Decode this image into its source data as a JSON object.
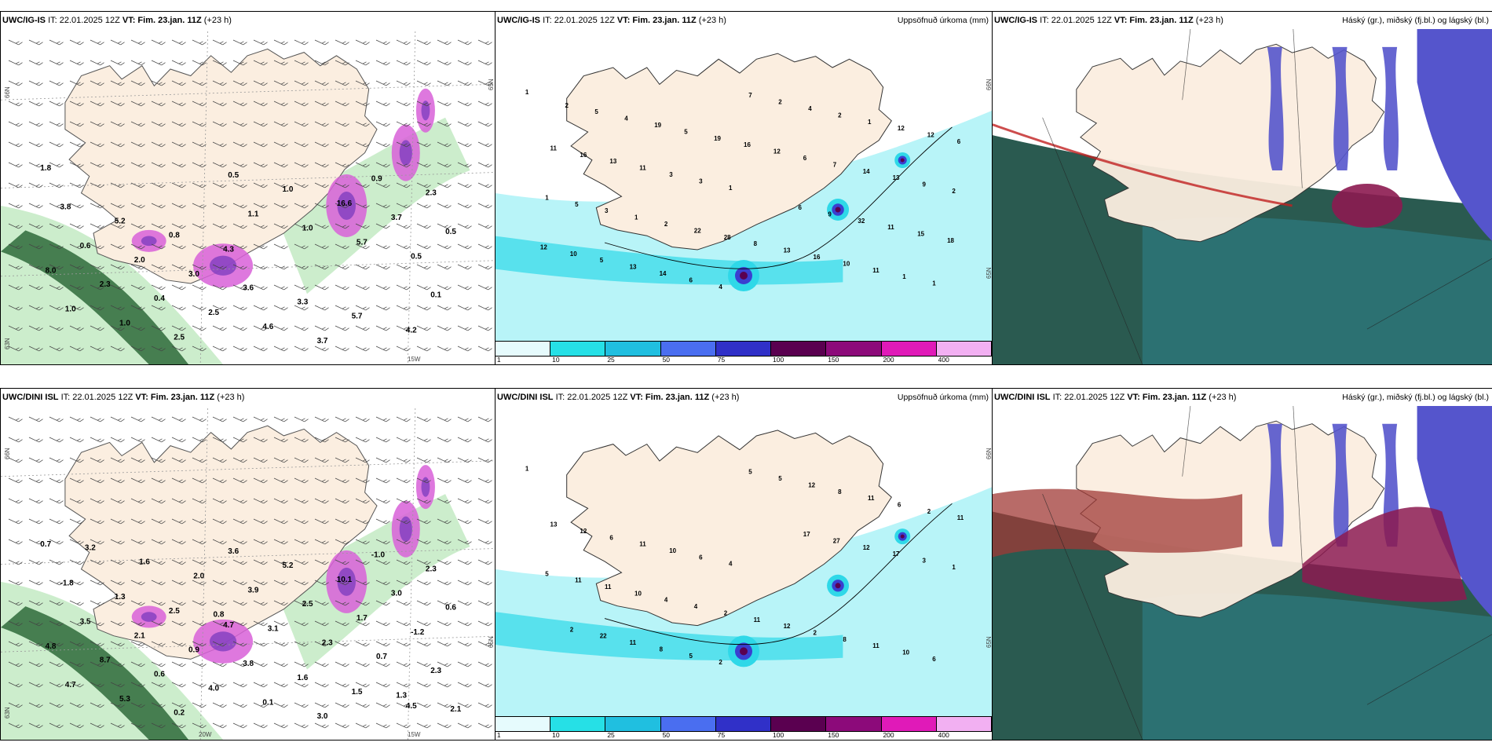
{
  "panels": [
    {
      "id": "top-left",
      "model": "UWC/IG-IS",
      "it_text": "IT: 22.01.2025 12Z",
      "vt_text": "VT: Fim. 23.jan. 11Z",
      "lead_text": "(+23 h)",
      "right_title": "",
      "lat_labels": [
        "66N",
        "65N",
        "63N"
      ],
      "lon_labels": [
        "15W"
      ],
      "point_labels": [
        "1.8",
        "4.3",
        "4.2",
        "0.8",
        "5.7",
        "5.2",
        "3.3",
        "3.8",
        "3.6",
        "2.3",
        "3.0",
        "0.9",
        "2.0",
        "3.7",
        "0.6",
        "4.6",
        "0.5",
        "2.5",
        "3.7",
        "0.4",
        "16.6",
        "2.3",
        "1.0",
        "8.0",
        "0.5",
        "0.5",
        "2.5",
        "5.7",
        "1.0",
        "1.0",
        "1.0",
        "1.1",
        "0.1"
      ]
    },
    {
      "id": "top-middle",
      "model": "UWC/IG-IS",
      "it_text": "IT: 22.01.2025 12Z",
      "vt_text": "VT: Fim. 23.jan. 11Z",
      "lead_text": "(+23 h)",
      "right_title": "Uppsöfnuð úrkoma (mm)",
      "lat_labels": [
        "66N",
        "65N"
      ],
      "lon_labels": [],
      "point_labels": [
        "1",
        "1",
        "1",
        "3",
        "1",
        "3",
        "11",
        "11",
        "10",
        "13",
        "16",
        "16",
        "13",
        "11",
        "8",
        "6",
        "28",
        "12",
        "22",
        "12",
        "2",
        "1",
        "1",
        "2",
        "3",
        "4",
        "5",
        "2",
        "1",
        "7",
        "2",
        "4",
        "9",
        "6",
        "13",
        "14",
        "14",
        "13",
        "7",
        "5",
        "6",
        "10",
        "12",
        "12",
        "16",
        "18",
        "19",
        "15",
        "5",
        "11",
        "19",
        "32",
        "4",
        "9",
        "5",
        "6",
        "2"
      ]
    },
    {
      "id": "top-right",
      "model": "UWC/IG-IS",
      "it_text": "IT: 22.01.2025 12Z",
      "vt_text": "VT: Fim. 23.jan. 11Z",
      "lead_text": "(+23 h)",
      "right_title": "Háský (gr.), miðský (fj.bl.) og lágský (bl.)"
    },
    {
      "id": "bottom-left",
      "model": "UWC/DINI ISL",
      "it_text": "IT: 22.01.2025 12Z",
      "vt_text": "VT: Fim. 23.jan. 11Z",
      "lead_text": "(+23 h)",
      "right_title": "",
      "lat_labels": [
        "66N",
        "65N",
        "63N"
      ],
      "lon_labels": [
        "20W",
        "15W"
      ],
      "point_labels": [
        "0.7",
        "4.7",
        "4.5",
        "2.5",
        "1.5",
        "1.3",
        "1.6",
        "-1.8",
        "3.8",
        "2.3",
        "0.9",
        "-1.0",
        "2.1",
        "3.0",
        "3.5",
        "0.1",
        "0.6",
        "4.0",
        "3.0",
        "0.6",
        "10.1",
        "8.7",
        "5.2",
        "4.8",
        "3.6",
        "-1.2",
        "0.2",
        "1.7",
        "5.3",
        "2.5",
        "4.7",
        "3.9",
        "2.3",
        "2.0",
        "0.7",
        "1.6",
        "2.3",
        "3.2",
        "3.1",
        "2.1",
        "0.8",
        "1.3"
      ]
    },
    {
      "id": "bottom-middle",
      "model": "UWC/DINI ISL",
      "it_text": "IT: 22.01.2025 12Z",
      "vt_text": "VT: Fim. 23.jan. 11Z",
      "lead_text": "(+23 h)",
      "right_title": "Uppsöfnuð úrkoma (mm)",
      "lat_labels": [
        "66N",
        "65N"
      ],
      "lon_labels": [],
      "point_labels": [
        "1",
        "4",
        "6",
        "6",
        "10",
        "10",
        "11",
        "11",
        "8",
        "6",
        "2",
        "12",
        "12",
        "13",
        "11",
        "11",
        "2",
        "2",
        "4",
        "6",
        "4",
        "11",
        "10",
        "8",
        "11",
        "12",
        "11",
        "5",
        "5",
        "5",
        "1",
        "2",
        "3",
        "5",
        "17",
        "8",
        "12",
        "11",
        "27",
        "22",
        "17",
        "2"
      ]
    },
    {
      "id": "bottom-right",
      "model": "UWC/DINI ISL",
      "it_text": "IT: 22.01.2025 12Z",
      "vt_text": "VT: Fim. 23.jan. 11Z",
      "lead_text": "(+23 h)",
      "right_title": "Háský (gr.), miðský (fj.bl.) og lágský (bl.)"
    }
  ],
  "colorbar": {
    "labels": [
      "1",
      "10",
      "25",
      "50",
      "75",
      "100",
      "150",
      "200",
      "400"
    ],
    "colors": [
      "#e6fbfd",
      "#26e0e6",
      "#20bfe0",
      "#4a6ef0",
      "#3030c8",
      "#5a0050",
      "#8c0a7a",
      "#e01ab8",
      "#f2b0f2"
    ]
  },
  "colors": {
    "land": "#fbeee0",
    "ocean_precip_light": "#b8f4f8",
    "ocean_precip_mid": "#2fd8e8",
    "precip_high": "#3a3fd0",
    "cloud_low": "#2a5a50",
    "cloud_mid": "#5555cc",
    "cloud_high": "#8c1a50",
    "green_band": "#2e6a3a",
    "magenta": "#d860d8"
  }
}
